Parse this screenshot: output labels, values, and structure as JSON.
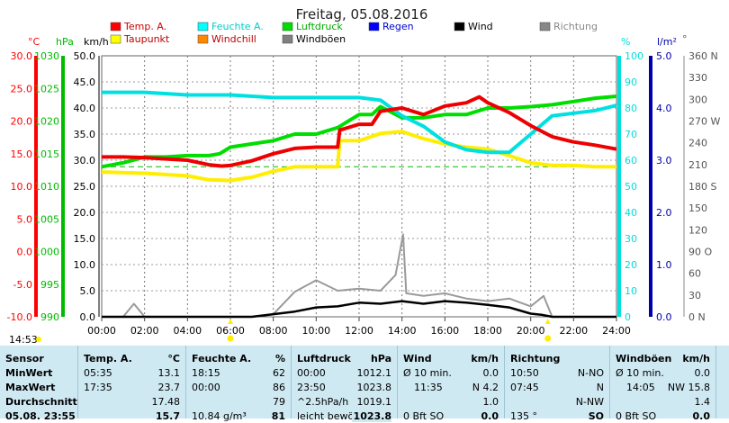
{
  "chart_data": {
    "type": "line",
    "title": "Freitag, 05.08.2016",
    "x_ticks": [
      "00:00",
      "02:00",
      "04:00",
      "06:00",
      "08:00",
      "10:00",
      "12:00",
      "14:00",
      "16:00",
      "18:00",
      "20:00",
      "22:00",
      "24:00"
    ],
    "xlim_hours": [
      0,
      24
    ],
    "axes": {
      "temp": {
        "unit": "°C",
        "ticks": [
          "30.0",
          "25.0",
          "20.0",
          "15.0",
          "10.0",
          "5.0",
          "0.0",
          "-5.0",
          "-10.0"
        ],
        "range": [
          -10,
          30
        ],
        "color": "#ff0000"
      },
      "pressure": {
        "unit": "hPa",
        "ticks": [
          "1030",
          "1025",
          "1020",
          "1015",
          "1010",
          "1005",
          "1000",
          "995",
          "990"
        ],
        "range": [
          990,
          1030
        ],
        "color": "#00cc00"
      },
      "wind": {
        "unit": "km/h",
        "ticks": [
          "50.0",
          "45.0",
          "40.0",
          "35.0",
          "30.0",
          "25.0",
          "20.0",
          "15.0",
          "10.0",
          "5.0",
          "0.0"
        ],
        "range": [
          0,
          50
        ],
        "color": "#000000"
      },
      "humidity": {
        "unit": "%",
        "ticks": [
          "100",
          "90",
          "80",
          "70",
          "60",
          "50",
          "40",
          "30",
          "20",
          "10",
          "0"
        ],
        "range": [
          0,
          100
        ],
        "color": "#00e0e0"
      },
      "rain": {
        "unit": "l/m²",
        "ticks": [
          "5.0",
          "4.0",
          "3.0",
          "2.0",
          "1.0",
          "0.0"
        ],
        "range": [
          0,
          5
        ],
        "color": "#000099"
      },
      "direction": {
        "ticks": [
          "360 N",
          "330",
          "300",
          "270 W",
          "240",
          "210",
          "180 S",
          "150",
          "120",
          "90 O",
          "60",
          "30",
          "0 N"
        ],
        "range": [
          0,
          360
        ]
      }
    },
    "legend": [
      {
        "name": "Temp. A.",
        "color": "#ff0000"
      },
      {
        "name": "Feuchte A.",
        "color": "#00ffff"
      },
      {
        "name": "Luftdruck",
        "color": "#00dd00"
      },
      {
        "name": "Regen",
        "color": "#0000ff"
      },
      {
        "name": "Wind",
        "color": "#000000"
      },
      {
        "name": "Richtung",
        "color": "#888888"
      },
      {
        "name": "Taupunkt",
        "color": "#ffff00"
      },
      {
        "name": "Windchill",
        "color": "#ff8800"
      },
      {
        "name": "Windböen",
        "color": "#808080"
      }
    ],
    "series": [
      {
        "name": "Temp. A.",
        "axis": "temp",
        "color": "#ee0000",
        "x": [
          0,
          1,
          2,
          3,
          4,
          5,
          5.6,
          6,
          7,
          8,
          9,
          10,
          11,
          11.1,
          12,
          12.6,
          13,
          14,
          15,
          16,
          17,
          17.6,
          18,
          19,
          20,
          21,
          22,
          23,
          24
        ],
        "y": [
          14.5,
          14.5,
          14.4,
          14.2,
          14.0,
          13.3,
          13.1,
          13.2,
          13.9,
          15.0,
          15.8,
          16.0,
          16.0,
          18.6,
          19.5,
          19.5,
          21.5,
          22.0,
          21.0,
          22.3,
          22.8,
          23.7,
          22.8,
          21.3,
          19.3,
          17.6,
          16.8,
          16.3,
          15.7
        ]
      },
      {
        "name": "Feuchte A.",
        "axis": "humidity",
        "color": "#00e0e0",
        "x": [
          0,
          2,
          4,
          6,
          8,
          10,
          12,
          13,
          14,
          15,
          16,
          17,
          18,
          19,
          20,
          21,
          22,
          23,
          24
        ],
        "y": [
          86,
          86,
          85,
          85,
          84,
          84,
          84,
          83,
          77,
          73,
          67,
          64,
          63,
          63,
          70,
          77,
          78,
          79,
          81
        ]
      },
      {
        "name": "Luftdruck",
        "axis": "pressure",
        "color": "#00dd00",
        "x": [
          0,
          1,
          2,
          3,
          4,
          5,
          5.5,
          6,
          7,
          8,
          9,
          10,
          11,
          12,
          12.6,
          13,
          14,
          15,
          16,
          17,
          18,
          19,
          20,
          21,
          22,
          23,
          24
        ],
        "y": [
          1013.0,
          1013.6,
          1014.5,
          1014.5,
          1014.7,
          1014.7,
          1015.0,
          1016.0,
          1016.5,
          1017.0,
          1018.0,
          1018.0,
          1019.0,
          1021.0,
          1021.0,
          1022.2,
          1020.5,
          1020.5,
          1021.0,
          1021.0,
          1022.0,
          1022.0,
          1022.2,
          1022.5,
          1023.0,
          1023.5,
          1023.8
        ]
      },
      {
        "name": "Taupunkt",
        "axis": "temp",
        "color": "#ffee00",
        "x": [
          0,
          2,
          4,
          5,
          6,
          7,
          8,
          9,
          10,
          11,
          11.1,
          12,
          13,
          14,
          15,
          16,
          17,
          18,
          19,
          20,
          21,
          22,
          23,
          24
        ],
        "y": [
          12.2,
          12.0,
          11.6,
          11.0,
          10.9,
          11.4,
          12.3,
          13.0,
          13.0,
          13.0,
          17.0,
          17.0,
          18.1,
          18.4,
          17.3,
          16.5,
          16.0,
          15.7,
          14.7,
          13.6,
          13.2,
          13.2,
          13.0,
          13.0
        ]
      },
      {
        "name": "Wind",
        "axis": "wind",
        "color": "#000000",
        "x": [
          0,
          7,
          8,
          9,
          10,
          11,
          12,
          13,
          14,
          15,
          16,
          17,
          18,
          19,
          20,
          20.5,
          21,
          22,
          24
        ],
        "y": [
          0,
          0,
          0.5,
          1.0,
          1.8,
          2.0,
          2.7,
          2.5,
          3.0,
          2.5,
          3.0,
          2.7,
          2.3,
          1.8,
          0.6,
          0.4,
          0,
          0,
          0
        ]
      },
      {
        "name": "Windböen",
        "axis": "wind",
        "color": "#9a9a9a",
        "x": [
          0,
          1,
          1.5,
          2,
          6,
          7,
          8,
          9,
          10,
          11,
          12,
          13,
          13.7,
          14.05,
          14.2,
          15,
          16,
          17,
          18,
          19,
          20,
          20.6,
          21,
          22,
          24
        ],
        "y": [
          0,
          0,
          2.5,
          0,
          0,
          0,
          0.5,
          4.8,
          7.0,
          5.0,
          5.4,
          5.0,
          8.0,
          15.8,
          4.5,
          4.0,
          4.5,
          3.5,
          3.0,
          3.5,
          2.0,
          4.0,
          0,
          0,
          0
        ]
      }
    ],
    "reference_line": {
      "axis": "temp",
      "value": 13.0,
      "color": "#00bb00",
      "style": "dashed"
    },
    "sun_markers": [
      {
        "x_hour": 6.0,
        "color": "#ffee00"
      },
      {
        "x_hour": 20.8,
        "color": "#ffee00"
      }
    ]
  },
  "footer": {
    "time": "14:53",
    "cols": {
      "sensor": {
        "hdr": "Sensor",
        "min": "MinWert",
        "max": "MaxWert",
        "avg": "Durchschnitt",
        "cur": "05.08. 23:55"
      },
      "temp": {
        "hdr": "Temp. A.",
        "unit": "°C",
        "min_t": "05:35",
        "min_v": "13.1",
        "max_t": "17:35",
        "max_v": "23.7",
        "avg": "17.48",
        "cur": "15.7"
      },
      "hum": {
        "hdr": "Feuchte A.",
        "unit": "%",
        "min_t": "18:15",
        "min_v": "62",
        "max_t": "00:00",
        "max_v": "86",
        "avg": "79",
        "cur_extra": "10.84 g/m³",
        "cur": "81"
      },
      "press": {
        "hdr": "Luftdruck",
        "unit": "hPa",
        "min_t": "00:00",
        "min_v": "1012.1",
        "max_t": "23:50",
        "max_v": "1023.8",
        "avg_t": "^2.5hPa/h",
        "avg": "1019.1",
        "cur_t": "leicht bewölkt",
        "cur": "1023.8"
      },
      "wind": {
        "hdr": "Wind",
        "unit": "km/h",
        "min_t": "Ø 10 min.",
        "min_v": "0.0",
        "max_t": "11:35",
        "max_v": "N 4.2",
        "avg": "1.0",
        "cur_t": "0 Bft SO",
        "cur": "0.0"
      },
      "dir": {
        "hdr": "Richtung",
        "min_t": "10:50",
        "min_v": "N-NO",
        "max_t": "07:45",
        "max_v": "N",
        "avg": "N-NW",
        "cur_t": "135 °",
        "cur": "SO"
      },
      "gust": {
        "hdr": "Windböen",
        "unit": "km/h",
        "min_t": "Ø 10 min.",
        "min_v": "0.0",
        "max_t": "14:05",
        "max_v": "NW 15.8",
        "avg": "1.4",
        "cur_t": "0 Bft SO",
        "cur": "0.0"
      }
    }
  }
}
